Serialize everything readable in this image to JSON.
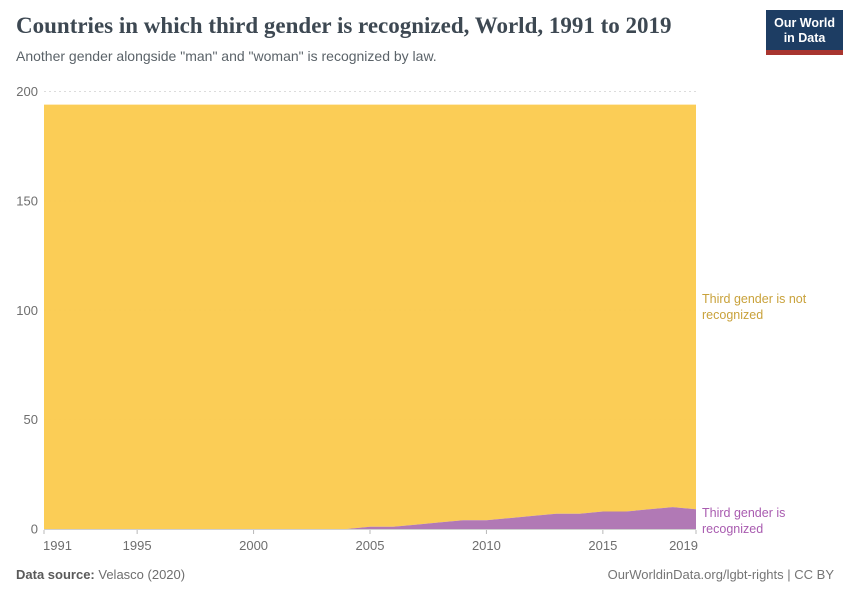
{
  "header": {
    "title": "Countries in which third gender is recognized, World, 1991 to 2019",
    "subtitle": "Another gender alongside \"man\" and \"woman\" is recognized by law.",
    "logo": {
      "line1": "Our World",
      "line2": "in Data"
    }
  },
  "side_labels": {
    "not_recognized": "Third gender is not recognized",
    "recognized": "Third gender is recognized"
  },
  "footer": {
    "source_label": "Data source:",
    "source_value": "Velasco (2020)",
    "link": "OurWorldinData.org/lgbt-rights",
    "separator": " | ",
    "license": "CC BY"
  },
  "colors": {
    "area_recognized": "#b179b5",
    "area_not_recognized": "#fbca4d",
    "label_recognized": "#a95cb0",
    "label_not_recognized": "#c9a23b",
    "grid": "#dcdcdc",
    "axis_text": "#6e6e6e",
    "tick": "#b8b8b8",
    "axis_line": "#cfcfcf",
    "logo_bg": "#1d3d63",
    "logo_bar": "#a8352f"
  },
  "chart_data": {
    "type": "area",
    "stacked": true,
    "title": "Countries in which third gender is recognized, World, 1991 to 2019",
    "xlabel": "",
    "ylabel": "",
    "grid": "dashed horizontal",
    "legend_position": "right-edge area labels",
    "total_countries": 194,
    "xlim": [
      1991,
      2019
    ],
    "ylim": [
      0,
      200
    ],
    "x_ticks": [
      1991,
      1995,
      2000,
      2005,
      2010,
      2015,
      2019
    ],
    "y_ticks": [
      0,
      50,
      100,
      150,
      200
    ],
    "x": [
      1991,
      1992,
      1993,
      1994,
      1995,
      1996,
      1997,
      1998,
      1999,
      2000,
      2001,
      2002,
      2003,
      2004,
      2005,
      2006,
      2007,
      2008,
      2009,
      2010,
      2011,
      2012,
      2013,
      2014,
      2015,
      2016,
      2017,
      2018,
      2019
    ],
    "series": [
      {
        "name": "Third gender is recognized",
        "color": "#b179b5",
        "values": [
          0,
          0,
          0,
          0,
          0,
          0,
          0,
          0,
          0,
          0,
          0,
          0,
          0,
          0,
          1,
          1,
          2,
          3,
          4,
          4,
          5,
          6,
          7,
          7,
          8,
          8,
          9,
          10,
          9
        ]
      },
      {
        "name": "Third gender is not recognized",
        "color": "#fbca4d",
        "values": [
          194,
          194,
          194,
          194,
          194,
          194,
          194,
          194,
          194,
          194,
          194,
          194,
          194,
          194,
          193,
          193,
          192,
          191,
          190,
          190,
          189,
          188,
          187,
          187,
          186,
          186,
          185,
          184,
          185
        ]
      }
    ]
  }
}
